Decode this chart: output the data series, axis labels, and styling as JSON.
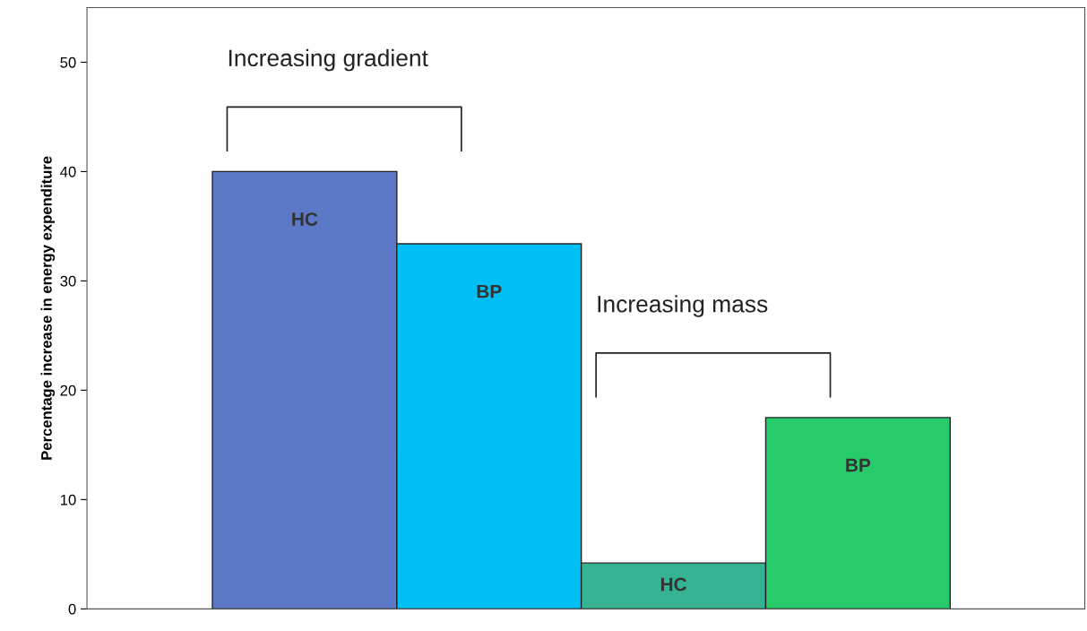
{
  "chart_data": {
    "type": "bar",
    "ylabel": "Percentage increase in energy expenditure",
    "categories": [
      "HC",
      "BP",
      "HC",
      "BP"
    ],
    "values": [
      40.0,
      33.4,
      4.2,
      17.5
    ],
    "colors": [
      "#5b79c6",
      "#00bff5",
      "#35b393",
      "#27cb6b"
    ],
    "ylim": [
      0,
      55
    ],
    "yticks": [
      0,
      10,
      20,
      30,
      40,
      50
    ],
    "annotations": [
      "Increasing gradient",
      "Increasing mass"
    ]
  }
}
